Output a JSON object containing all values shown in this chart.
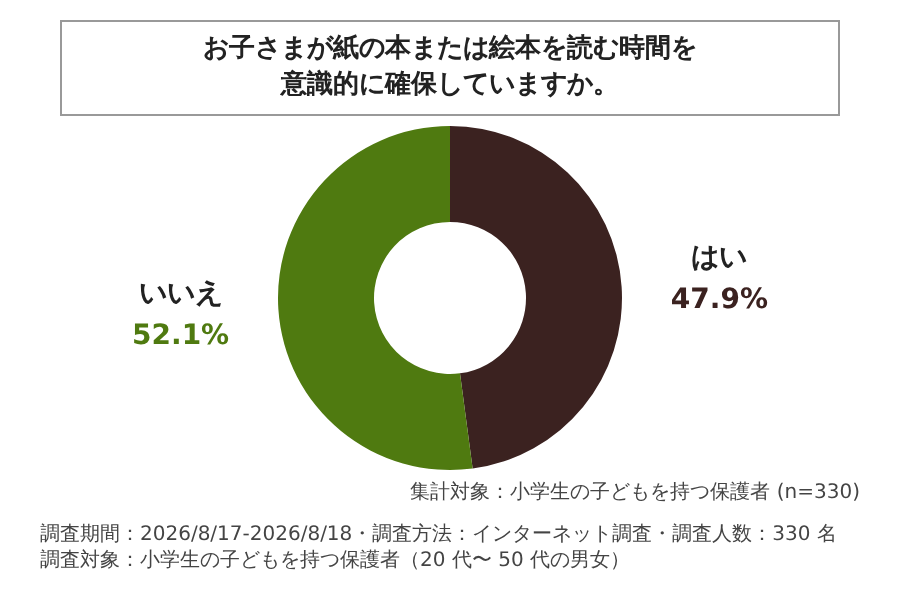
{
  "chart_data": {
    "type": "donut",
    "title": "お子さまが紙の本または絵本を読む時間を意識的に確保していますか。",
    "categories": [
      "はい",
      "いいえ"
    ],
    "values": [
      47.9,
      52.1
    ],
    "colors": [
      "#3b2220",
      "#4f7a10"
    ],
    "value_labels": [
      "47.9%",
      "52.1%"
    ],
    "annotations": [
      "集計対象：小学生の子どもを持つ保護者 (n=330)",
      "調査期間：2026/8/17-2026/8/18・調査方法：インターネット調査・調査人数：330 名",
      "調査対象：小学生の子どもを持つ保護者（20 代〜 50 代の男女）"
    ]
  }
}
